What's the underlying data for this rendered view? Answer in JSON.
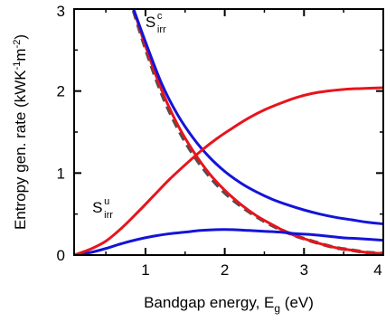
{
  "chart_data": {
    "type": "line",
    "title": "",
    "xlabel": {
      "main": "Bandgap energy, E",
      "sub": "g",
      "tail": " (eV)"
    },
    "ylabel": {
      "main": "Entropy gen. rate (kWK",
      "sup1": "-1",
      "mid": "m",
      "sup2": "-2",
      "tail": ")"
    },
    "xlim": [
      0.1,
      4.0
    ],
    "ylim": [
      0,
      3
    ],
    "xticks": [
      1,
      2,
      3,
      4
    ],
    "yticks": [
      0,
      1,
      2,
      3
    ],
    "minor_xticks": [
      0.5,
      1.5,
      2.5,
      3.5
    ],
    "minor_yticks": [
      0.5,
      1.5,
      2.5
    ],
    "grid": false,
    "colors": {
      "red": "#e8141c",
      "blue": "#1414d8",
      "dashed": "#505050"
    },
    "annotations": [
      {
        "id": "s-c",
        "main": "S",
        "sup": "c",
        "sub": "irr",
        "x": 1.0,
        "y": 2.78
      },
      {
        "id": "s-u",
        "main": "S",
        "sup": "u",
        "sub": "irr",
        "x": 0.33,
        "y": 0.52
      }
    ],
    "series": [
      {
        "id": "red-rising",
        "color": "red",
        "style": "solid",
        "x": [
          0.1,
          0.3,
          0.5,
          0.7,
          0.9,
          1.1,
          1.3,
          1.5,
          1.7,
          1.9,
          2.1,
          2.3,
          2.5,
          2.7,
          2.9,
          3.1,
          3.3,
          3.5,
          3.7,
          4.0
        ],
        "y": [
          0.0,
          0.07,
          0.17,
          0.33,
          0.52,
          0.72,
          0.92,
          1.1,
          1.27,
          1.42,
          1.55,
          1.67,
          1.77,
          1.85,
          1.92,
          1.97,
          2.0,
          2.02,
          2.03,
          2.04
        ]
      },
      {
        "id": "blue-hump",
        "color": "blue",
        "style": "solid",
        "x": [
          0.1,
          0.3,
          0.5,
          0.7,
          0.9,
          1.1,
          1.3,
          1.5,
          1.7,
          1.9,
          2.1,
          2.3,
          2.5,
          2.7,
          2.9,
          3.1,
          3.3,
          3.5,
          3.7,
          4.0
        ],
        "y": [
          0.0,
          0.03,
          0.08,
          0.14,
          0.19,
          0.23,
          0.26,
          0.28,
          0.3,
          0.31,
          0.31,
          0.3,
          0.29,
          0.28,
          0.26,
          0.25,
          0.23,
          0.21,
          0.2,
          0.18
        ]
      },
      {
        "id": "blue-falling",
        "color": "blue",
        "style": "solid",
        "x": [
          0.85,
          1.0,
          1.2,
          1.4,
          1.6,
          1.8,
          2.0,
          2.2,
          2.4,
          2.6,
          2.8,
          3.0,
          3.2,
          3.4,
          3.6,
          3.8,
          4.0
        ],
        "y": [
          3.0,
          2.6,
          2.1,
          1.72,
          1.43,
          1.2,
          1.02,
          0.88,
          0.77,
          0.68,
          0.61,
          0.55,
          0.5,
          0.46,
          0.43,
          0.4,
          0.38
        ]
      },
      {
        "id": "red-falling",
        "color": "red",
        "style": "solid",
        "x": [
          0.85,
          1.0,
          1.2,
          1.4,
          1.6,
          1.8,
          2.0,
          2.2,
          2.4,
          2.6,
          2.8,
          3.0,
          3.2,
          3.4,
          3.6,
          3.8,
          4.0
        ],
        "y": [
          3.0,
          2.55,
          2.02,
          1.6,
          1.27,
          1.0,
          0.79,
          0.62,
          0.48,
          0.37,
          0.27,
          0.2,
          0.14,
          0.09,
          0.06,
          0.03,
          0.02
        ]
      },
      {
        "id": "dashed-falling",
        "color": "dashed",
        "style": "dashed",
        "x": [
          0.85,
          1.0,
          1.2,
          1.4,
          1.6,
          1.8,
          2.0,
          2.2,
          2.4,
          2.6,
          2.8,
          3.0,
          3.2,
          3.4,
          3.6,
          3.8,
          4.0
        ],
        "y": [
          2.98,
          2.52,
          1.98,
          1.56,
          1.23,
          0.97,
          0.76,
          0.6,
          0.47,
          0.36,
          0.27,
          0.2,
          0.14,
          0.09,
          0.06,
          0.03,
          0.02
        ]
      }
    ]
  }
}
